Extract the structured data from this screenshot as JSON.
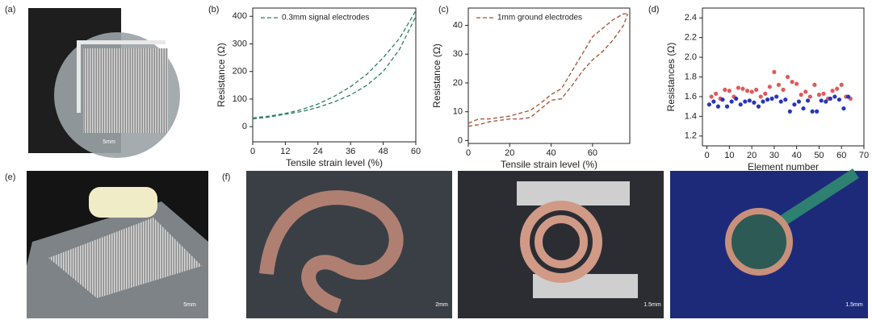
{
  "panel_labels": [
    "(a)",
    "(b)",
    "(c)",
    "(d)",
    "(e)",
    "(f)"
  ],
  "scale_bars": [
    "5mm",
    "5mm",
    "2mm",
    "1.5mm",
    "1.5mm"
  ],
  "chart_data": [
    {
      "type": "line",
      "x_label": "Tensile strain level (%)",
      "y_label": "Resistance (Ω)",
      "x": [
        0,
        6,
        12,
        18,
        24,
        30,
        36,
        42,
        48,
        54,
        60
      ],
      "series": [
        {
          "name": "0.3mm signal electrodes",
          "color": "#2e7d64",
          "values": [
            32,
            38,
            48,
            62,
            82,
            110,
            145,
            190,
            250,
            320,
            420
          ]
        },
        {
          "color": "#2e7d64",
          "values": [
            28,
            35,
            45,
            55,
            70,
            90,
            115,
            150,
            200,
            280,
            400
          ]
        }
      ],
      "xlim": [
        0,
        60
      ],
      "xticks": [
        0,
        12,
        24,
        36,
        48,
        60
      ],
      "ylim": [
        -55,
        430
      ],
      "yticks": [
        0,
        100,
        200,
        300,
        400
      ],
      "legend": "upper left"
    },
    {
      "type": "line",
      "x_label": "Tensile strain level (%)",
      "y_label": "Resistance (Ω)",
      "x": [
        0,
        5,
        10,
        15,
        20,
        25,
        30,
        35,
        40,
        45,
        50,
        55,
        60,
        65,
        70,
        75,
        77
      ],
      "series": [
        {
          "name": "1mm ground electrodes",
          "color": "#a0522d",
          "values": [
            6,
            7.5,
            7.5,
            8,
            8.5,
            9.5,
            10.5,
            13,
            16,
            18,
            24,
            30,
            36,
            39,
            42,
            44,
            44
          ]
        },
        {
          "color": "#a0522d",
          "values": [
            5,
            5.5,
            6.5,
            7,
            7.5,
            7.5,
            8,
            11,
            14,
            14.5,
            19,
            24,
            28,
            31,
            35,
            40,
            44
          ]
        }
      ],
      "xlim": [
        0,
        78
      ],
      "xticks": [
        0,
        20,
        40,
        60
      ],
      "ylim": [
        -1,
        46
      ],
      "yticks": [
        0,
        10,
        20,
        30,
        40
      ],
      "legend": "upper left"
    },
    {
      "type": "scatter",
      "x_label": "Element number",
      "y_label": "Resistances (Ω)",
      "series": [
        {
          "color": "#e05a5a",
          "x": [
            2,
            4,
            6,
            8,
            10,
            12,
            14,
            16,
            18,
            20,
            22,
            24,
            26,
            28,
            30,
            32,
            34,
            36,
            38,
            40,
            42,
            44,
            46,
            48,
            50,
            52,
            54,
            56,
            58,
            60,
            62,
            64
          ],
          "values": [
            1.6,
            1.63,
            1.58,
            1.67,
            1.66,
            1.6,
            1.69,
            1.68,
            1.66,
            1.65,
            1.67,
            1.6,
            1.63,
            1.7,
            1.85,
            1.72,
            1.67,
            1.8,
            1.75,
            1.73,
            1.62,
            1.65,
            1.6,
            1.72,
            1.62,
            1.63,
            1.58,
            1.66,
            1.68,
            1.72,
            1.6,
            1.58
          ]
        },
        {
          "color": "#2a36b8",
          "x": [
            1,
            3,
            5,
            7,
            9,
            11,
            13,
            15,
            17,
            19,
            21,
            23,
            25,
            27,
            29,
            31,
            33,
            35,
            37,
            39,
            41,
            43,
            45,
            47,
            49,
            51,
            53,
            55,
            57,
            59,
            61,
            63
          ],
          "values": [
            1.52,
            1.55,
            1.5,
            1.57,
            1.5,
            1.55,
            1.58,
            1.52,
            1.55,
            1.56,
            1.54,
            1.5,
            1.55,
            1.57,
            1.58,
            1.6,
            1.55,
            1.57,
            1.45,
            1.52,
            1.55,
            1.48,
            1.56,
            1.45,
            1.45,
            1.56,
            1.55,
            1.58,
            1.6,
            1.57,
            1.48,
            1.6
          ]
        }
      ],
      "xlim": [
        -2,
        70
      ],
      "xticks": [
        0,
        10,
        20,
        30,
        40,
        50,
        60,
        70
      ],
      "ylim": [
        1.1,
        2.5
      ],
      "yticks": [
        1.2,
        1.4,
        1.6,
        1.8,
        {
          "value": 2,
          "label": "2.0"
        },
        2.2,
        2.4
      ]
    }
  ]
}
